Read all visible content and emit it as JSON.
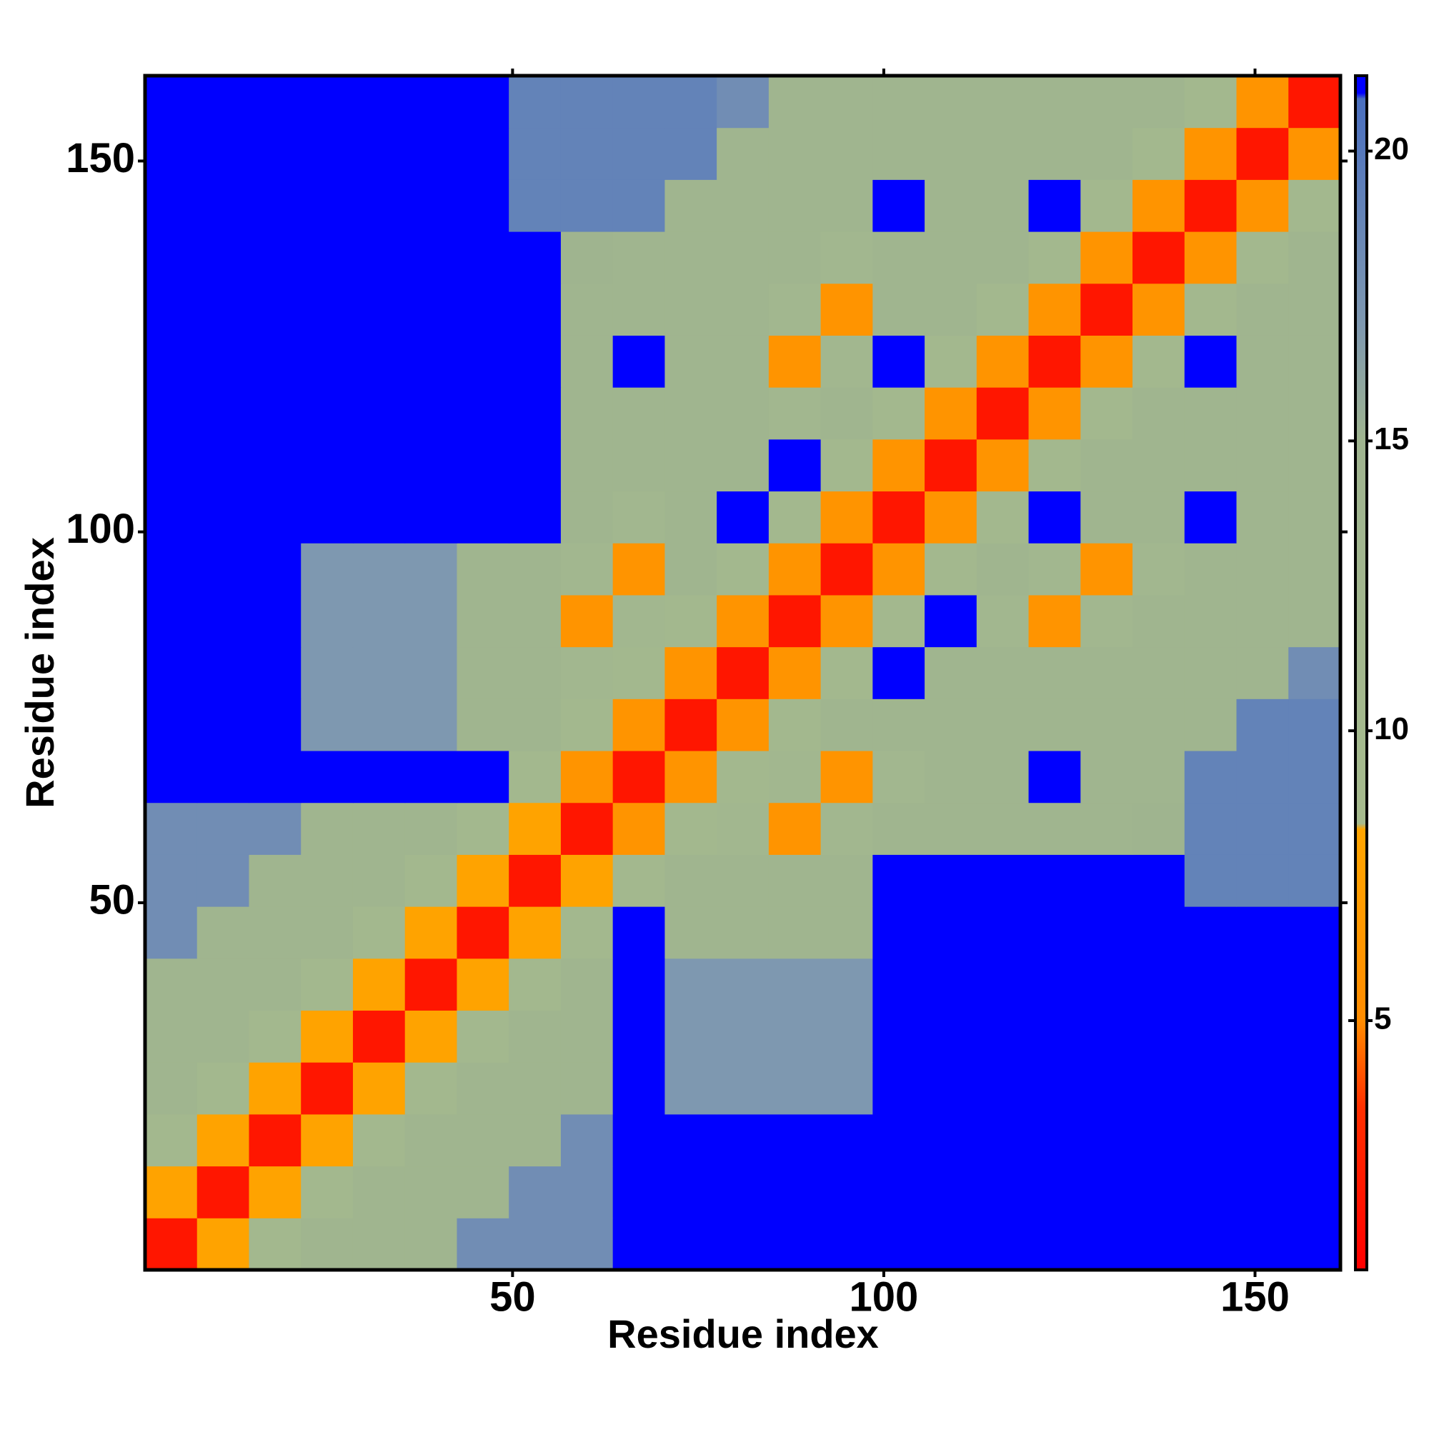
{
  "chart_data": {
    "type": "heatmap",
    "xlabel": "Residue index",
    "ylabel": "Residue index",
    "xlim": [
      0.5,
      161.5
    ],
    "ylim": [
      0.5,
      161.5
    ],
    "xticks": [
      50,
      100,
      150
    ],
    "yticks": [
      50,
      100,
      150
    ],
    "x": [
      4,
      11,
      18,
      25,
      32,
      39,
      46,
      53,
      60,
      67,
      74,
      81,
      88,
      95,
      102,
      109,
      116,
      123,
      130,
      137,
      144,
      151,
      158
    ],
    "y": [
      4,
      11,
      18,
      25,
      32,
      39,
      46,
      53,
      60,
      67,
      74,
      81,
      88,
      95,
      102,
      109,
      116,
      123,
      130,
      137,
      144,
      151,
      158
    ],
    "values": [
      [
        2,
        8,
        11,
        14,
        14,
        14,
        18,
        18,
        18,
        21,
        21,
        21,
        21,
        21,
        21,
        21,
        21,
        21,
        21,
        21,
        21,
        21,
        21
      ],
      [
        8,
        2,
        8,
        11,
        14,
        14,
        14,
        18,
        18,
        21,
        21,
        21,
        21,
        21,
        21,
        21,
        21,
        21,
        21,
        21,
        21,
        21,
        21
      ],
      [
        11,
        8,
        2,
        8,
        11,
        14,
        14,
        14,
        18,
        21,
        21,
        21,
        21,
        21,
        21,
        21,
        21,
        21,
        21,
        21,
        21,
        21,
        21
      ],
      [
        14,
        11,
        8,
        2,
        8,
        11,
        14,
        14,
        14,
        21,
        17,
        17,
        17,
        17,
        21,
        21,
        21,
        21,
        21,
        21,
        21,
        21,
        21
      ],
      [
        14,
        14,
        11,
        8,
        2,
        8,
        11,
        14,
        14,
        21,
        17,
        17,
        17,
        17,
        21,
        21,
        21,
        21,
        21,
        21,
        21,
        21,
        21
      ],
      [
        14,
        14,
        14,
        11,
        8,
        2,
        8,
        11,
        14,
        21,
        17,
        17,
        17,
        17,
        21,
        21,
        21,
        21,
        21,
        21,
        21,
        21,
        21
      ],
      [
        18,
        14,
        14,
        14,
        11,
        8,
        2,
        8,
        11,
        21,
        14,
        14,
        14,
        14,
        21,
        21,
        21,
        21,
        21,
        21,
        21,
        21,
        21
      ],
      [
        18,
        18,
        14,
        14,
        14,
        11,
        8,
        2,
        8,
        11,
        14,
        14,
        14,
        14,
        21,
        21,
        21,
        21,
        21,
        21,
        19,
        19,
        19
      ],
      [
        18,
        18,
        18,
        14,
        14,
        14,
        11,
        8,
        2,
        6,
        11,
        12,
        6,
        12,
        14,
        14,
        14,
        14,
        14,
        15,
        19,
        19,
        19
      ],
      [
        21,
        21,
        21,
        21,
        21,
        21,
        21,
        11,
        6,
        2,
        6,
        11,
        12,
        6,
        12,
        14,
        14,
        21,
        14,
        14,
        19,
        19,
        19
      ],
      [
        21,
        21,
        21,
        17,
        17,
        17,
        14,
        14,
        11,
        6,
        2,
        6,
        11,
        14,
        14,
        14,
        14,
        14,
        14,
        14,
        14,
        19,
        19
      ],
      [
        21,
        21,
        21,
        17,
        17,
        17,
        14,
        14,
        12,
        11,
        6,
        2,
        6,
        11,
        21,
        14,
        14,
        14,
        14,
        14,
        14,
        14,
        18
      ],
      [
        21,
        21,
        21,
        17,
        17,
        17,
        14,
        14,
        6,
        12,
        11,
        6,
        2,
        6,
        11,
        21,
        12,
        6,
        12,
        14,
        14,
        14,
        14
      ],
      [
        21,
        21,
        21,
        17,
        17,
        17,
        14,
        14,
        12,
        6,
        14,
        11,
        6,
        2,
        6,
        11,
        14,
        12,
        6,
        12,
        14,
        14,
        14
      ],
      [
        21,
        21,
        21,
        21,
        21,
        21,
        21,
        21,
        14,
        12,
        14,
        21,
        11,
        6,
        2,
        6,
        11,
        21,
        14,
        14,
        21,
        14,
        14
      ],
      [
        21,
        21,
        21,
        21,
        21,
        21,
        21,
        21,
        14,
        14,
        14,
        14,
        21,
        11,
        6,
        2,
        6,
        11,
        14,
        14,
        14,
        14,
        14
      ],
      [
        21,
        21,
        21,
        21,
        21,
        21,
        21,
        21,
        14,
        14,
        14,
        14,
        12,
        14,
        11,
        6,
        2,
        6,
        11,
        14,
        14,
        14,
        14
      ],
      [
        21,
        21,
        21,
        21,
        21,
        21,
        21,
        21,
        14,
        21,
        14,
        14,
        6,
        12,
        21,
        11,
        6,
        2,
        6,
        11,
        21,
        14,
        14
      ],
      [
        21,
        21,
        21,
        21,
        21,
        21,
        21,
        21,
        14,
        14,
        14,
        14,
        12,
        6,
        14,
        14,
        11,
        6,
        2,
        6,
        11,
        14,
        14
      ],
      [
        21,
        21,
        21,
        21,
        21,
        21,
        21,
        21,
        15,
        14,
        14,
        14,
        14,
        12,
        14,
        14,
        14,
        11,
        6,
        2,
        6,
        11,
        14
      ],
      [
        21,
        21,
        21,
        21,
        21,
        21,
        21,
        19,
        19,
        19,
        14,
        14,
        14,
        14,
        21,
        14,
        14,
        21,
        11,
        6,
        2,
        6,
        11
      ],
      [
        21,
        21,
        21,
        21,
        21,
        21,
        21,
        19,
        19,
        19,
        19,
        14,
        14,
        14,
        14,
        14,
        14,
        14,
        14,
        11,
        6,
        2,
        6
      ],
      [
        21,
        21,
        21,
        21,
        21,
        21,
        21,
        19,
        19,
        19,
        19,
        18,
        14,
        14,
        14,
        14,
        14,
        14,
        14,
        14,
        11,
        6,
        2
      ]
    ],
    "clim": [
      0.7,
      21.3
    ],
    "cticks": [
      5,
      10,
      15,
      20
    ],
    "colorscale": [
      {
        "value": 0.7,
        "color": "#ff0000"
      },
      {
        "value": 3.5,
        "color": "#ff3000"
      },
      {
        "value": 5,
        "color": "#ff8c00"
      },
      {
        "value": 8.3,
        "color": "#ffa500"
      },
      {
        "value": 8.4,
        "color": "#a6bb8e"
      },
      {
        "value": 15,
        "color": "#9fb48f"
      },
      {
        "value": 17,
        "color": "#7e98b0"
      },
      {
        "value": 20.9,
        "color": "#4a6fbf"
      },
      {
        "value": 21,
        "color": "#0000ff"
      },
      {
        "value": 21.3,
        "color": "#0000ff"
      }
    ]
  }
}
